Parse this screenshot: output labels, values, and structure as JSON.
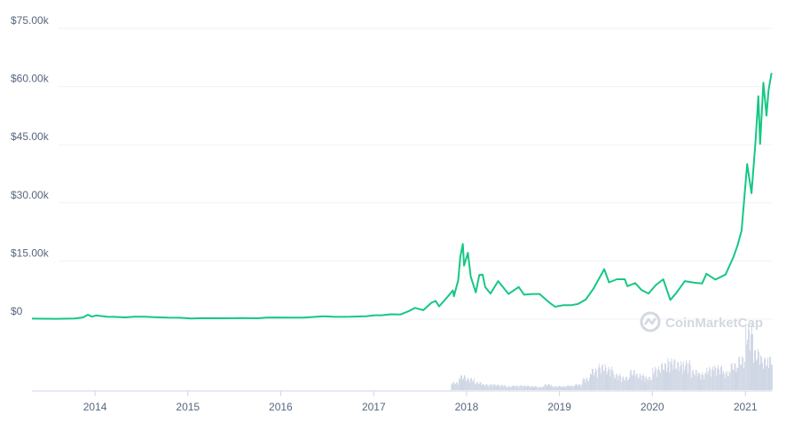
{
  "chart_data": {
    "type": "line",
    "y_axis": {
      "ticks": [
        {
          "value": 0,
          "label": "$0"
        },
        {
          "value": 15000,
          "label": "$15.00k"
        },
        {
          "value": 30000,
          "label": "$30.00k"
        },
        {
          "value": 45000,
          "label": "$45.00k"
        },
        {
          "value": 60000,
          "label": "$60.00k"
        },
        {
          "value": 75000,
          "label": "$75.00k"
        }
      ],
      "ylim": [
        0,
        75000
      ]
    },
    "x_axis": {
      "ticks": [
        "2014",
        "2015",
        "2016",
        "2017",
        "2018",
        "2019",
        "2020",
        "2021"
      ],
      "xlim": [
        "2013-04-28",
        "2021-04-15"
      ]
    },
    "grid": true,
    "series": [
      {
        "color": "#16c784",
        "points": [
          [
            "2013-04-28",
            135
          ],
          [
            "2013-08-01",
            100
          ],
          [
            "2013-10-15",
            160
          ],
          [
            "2013-11-15",
            450
          ],
          [
            "2013-12-04",
            1150
          ],
          [
            "2013-12-20",
            650
          ],
          [
            "2014-01-05",
            950
          ],
          [
            "2014-02-15",
            650
          ],
          [
            "2014-03-15",
            600
          ],
          [
            "2014-05-01",
            450
          ],
          [
            "2014-06-03",
            650
          ],
          [
            "2014-07-15",
            620
          ],
          [
            "2014-09-01",
            480
          ],
          [
            "2014-10-15",
            380
          ],
          [
            "2014-12-01",
            370
          ],
          [
            "2015-01-14",
            180
          ],
          [
            "2015-03-01",
            260
          ],
          [
            "2015-06-01",
            230
          ],
          [
            "2015-08-01",
            280
          ],
          [
            "2015-10-01",
            240
          ],
          [
            "2015-11-04",
            400
          ],
          [
            "2015-12-15",
            430
          ],
          [
            "2016-02-01",
            380
          ],
          [
            "2016-04-01",
            420
          ],
          [
            "2016-06-17",
            750
          ],
          [
            "2016-08-01",
            600
          ],
          [
            "2016-10-01",
            610
          ],
          [
            "2016-12-01",
            750
          ],
          [
            "2017-01-05",
            1000
          ],
          [
            "2017-02-01",
            1000
          ],
          [
            "2017-03-10",
            1250
          ],
          [
            "2017-04-15",
            1200
          ],
          [
            "2017-05-20",
            2100
          ],
          [
            "2017-06-12",
            2900
          ],
          [
            "2017-07-15",
            2300
          ],
          [
            "2017-08-15",
            4200
          ],
          [
            "2017-09-01",
            4700
          ],
          [
            "2017-09-15",
            3300
          ],
          [
            "2017-10-20",
            5900
          ],
          [
            "2017-11-08",
            7400
          ],
          [
            "2017-11-12",
            5900
          ],
          [
            "2017-11-29",
            10000
          ],
          [
            "2017-12-07",
            16000
          ],
          [
            "2017-12-17",
            19400
          ],
          [
            "2017-12-22",
            13800
          ],
          [
            "2018-01-06",
            17100
          ],
          [
            "2018-01-17",
            11000
          ],
          [
            "2018-02-06",
            6900
          ],
          [
            "2018-02-20",
            11400
          ],
          [
            "2018-03-05",
            11500
          ],
          [
            "2018-03-15",
            8300
          ],
          [
            "2018-04-05",
            6600
          ],
          [
            "2018-05-05",
            9800
          ],
          [
            "2018-06-15",
            6500
          ],
          [
            "2018-07-25",
            8300
          ],
          [
            "2018-08-15",
            6300
          ],
          [
            "2018-09-15",
            6500
          ],
          [
            "2018-10-15",
            6500
          ],
          [
            "2018-11-20",
            4400
          ],
          [
            "2018-12-15",
            3200
          ],
          [
            "2019-01-15",
            3600
          ],
          [
            "2019-02-15",
            3600
          ],
          [
            "2019-03-15",
            3900
          ],
          [
            "2019-04-15",
            5100
          ],
          [
            "2019-05-15",
            7900
          ],
          [
            "2019-06-26",
            12900
          ],
          [
            "2019-07-15",
            9500
          ],
          [
            "2019-08-15",
            10300
          ],
          [
            "2019-09-15",
            10300
          ],
          [
            "2019-09-25",
            8500
          ],
          [
            "2019-10-26",
            9300
          ],
          [
            "2019-11-20",
            7500
          ],
          [
            "2019-12-17",
            6600
          ],
          [
            "2020-01-15",
            8800
          ],
          [
            "2020-02-13",
            10300
          ],
          [
            "2020-03-12",
            4970
          ],
          [
            "2020-04-05",
            6800
          ],
          [
            "2020-05-08",
            9800
          ],
          [
            "2020-06-15",
            9400
          ],
          [
            "2020-07-15",
            9200
          ],
          [
            "2020-08-01",
            11700
          ],
          [
            "2020-09-05",
            10200
          ],
          [
            "2020-10-15",
            11500
          ],
          [
            "2020-11-15",
            16000
          ],
          [
            "2020-12-01",
            19000
          ],
          [
            "2020-12-17",
            22800
          ],
          [
            "2021-01-08",
            40000
          ],
          [
            "2021-01-25",
            32500
          ],
          [
            "2021-02-10",
            46000
          ],
          [
            "2021-02-21",
            57500
          ],
          [
            "2021-02-28",
            45200
          ],
          [
            "2021-03-13",
            61000
          ],
          [
            "2021-03-25",
            52500
          ],
          [
            "2021-04-02",
            59000
          ],
          [
            "2021-04-14",
            63500
          ]
        ]
      }
    ],
    "volume": [
      [
        "2017-11",
        0.12
      ],
      [
        "2017-12",
        0.22
      ],
      [
        "2018-01",
        0.18
      ],
      [
        "2018-02",
        0.12
      ],
      [
        "2018-03",
        0.09
      ],
      [
        "2018-04",
        0.09
      ],
      [
        "2018-05",
        0.08
      ],
      [
        "2018-06",
        0.06
      ],
      [
        "2018-07",
        0.07
      ],
      [
        "2018-08",
        0.07
      ],
      [
        "2018-09",
        0.06
      ],
      [
        "2018-10",
        0.05
      ],
      [
        "2018-11",
        0.09
      ],
      [
        "2018-12",
        0.06
      ],
      [
        "2019-01",
        0.06
      ],
      [
        "2019-02",
        0.07
      ],
      [
        "2019-03",
        0.09
      ],
      [
        "2019-04",
        0.18
      ],
      [
        "2019-05",
        0.32
      ],
      [
        "2019-06",
        0.38
      ],
      [
        "2019-07",
        0.34
      ],
      [
        "2019-08",
        0.24
      ],
      [
        "2019-09",
        0.2
      ],
      [
        "2019-10",
        0.3
      ],
      [
        "2019-11",
        0.24
      ],
      [
        "2019-12",
        0.2
      ],
      [
        "2020-01",
        0.34
      ],
      [
        "2020-02",
        0.4
      ],
      [
        "2020-03",
        0.46
      ],
      [
        "2020-04",
        0.42
      ],
      [
        "2020-05",
        0.44
      ],
      [
        "2020-06",
        0.3
      ],
      [
        "2020-07",
        0.26
      ],
      [
        "2020-08",
        0.34
      ],
      [
        "2020-09",
        0.36
      ],
      [
        "2020-10",
        0.28
      ],
      [
        "2020-11",
        0.4
      ],
      [
        "2020-12",
        0.5
      ],
      [
        "2021-01",
        0.95
      ],
      [
        "2021-02",
        0.6
      ],
      [
        "2021-03",
        0.48
      ],
      [
        "2021-04",
        0.5
      ]
    ]
  },
  "watermark": {
    "text": "CoinMarketCap",
    "icon": "coinmarketcap-logo-icon"
  }
}
